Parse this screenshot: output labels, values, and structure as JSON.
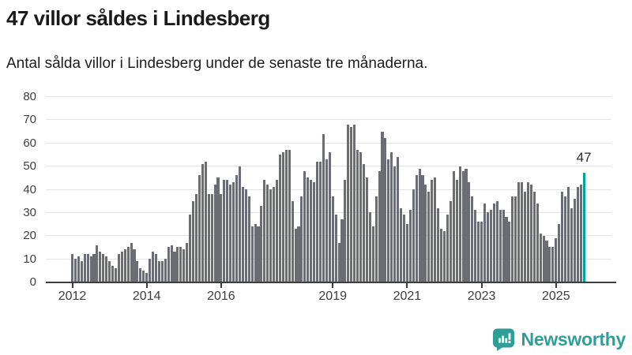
{
  "header": {
    "title": "47 villor såldes i Lindesberg",
    "subtitle": "Antal sålda villor i Lindesberg under de senaste tre månaderna."
  },
  "chart_data": {
    "type": "bar",
    "title": "47 villor såldes i Lindesberg",
    "subtitle": "Antal sålda villor i Lindesberg under de senaste tre månaderna.",
    "x_start": "2012-01",
    "x_end": "2025-10",
    "x_frequency": "monthly",
    "x_tick_labels": [
      "2012",
      "2014",
      "2016",
      "2019",
      "2021",
      "2023",
      "2025"
    ],
    "x_tick_month_index": [
      0,
      24,
      48,
      84,
      108,
      132,
      156
    ],
    "y_ticks": [
      0,
      10,
      20,
      30,
      40,
      50,
      60,
      70,
      80
    ],
    "ylim": [
      0,
      80
    ],
    "grid": "horizontal",
    "legend": "none",
    "bar_color": "#6c6c74",
    "highlight_color": "#00a2a0",
    "highlight_index": 165,
    "annotation": {
      "text": "47",
      "value": 47
    },
    "values": [
      12,
      10,
      11,
      9,
      12,
      12,
      11,
      12,
      16,
      13,
      12,
      11,
      9,
      7,
      6,
      12,
      13,
      14,
      15,
      17,
      14,
      9,
      6,
      5,
      4,
      10,
      13,
      12,
      9,
      9,
      10,
      15,
      16,
      13,
      15,
      15,
      14,
      17,
      29,
      35,
      38,
      46,
      51,
      52,
      38,
      38,
      42,
      45,
      38,
      44,
      44,
      42,
      43,
      46,
      50,
      41,
      40,
      37,
      24,
      25,
      24,
      33,
      44,
      42,
      40,
      41,
      44,
      55,
      56,
      57,
      57,
      35,
      23,
      24,
      37,
      48,
      45,
      44,
      43,
      52,
      52,
      64,
      53,
      56,
      37,
      29,
      17,
      27,
      44,
      68,
      67,
      68,
      57,
      56,
      51,
      45,
      30,
      24,
      37,
      48,
      65,
      62,
      53,
      56,
      50,
      54,
      32,
      29,
      25,
      31,
      40,
      46,
      49,
      46,
      42,
      39,
      44,
      45,
      32,
      23,
      22,
      29,
      35,
      48,
      44,
      50,
      48,
      49,
      43,
      37,
      31,
      26,
      26,
      34,
      30,
      31,
      34,
      35,
      31,
      31,
      28,
      26,
      37,
      37,
      43,
      43,
      39,
      43,
      42,
      39,
      34,
      21,
      20,
      18,
      15,
      15,
      19,
      25,
      39,
      37,
      41,
      32,
      36,
      41,
      42,
      47
    ]
  },
  "footer": {
    "brand": "Newsworthy",
    "brand_color": "#2f9e97"
  },
  "icons": {
    "logo": "bar-chart-speech-bubble-icon"
  }
}
